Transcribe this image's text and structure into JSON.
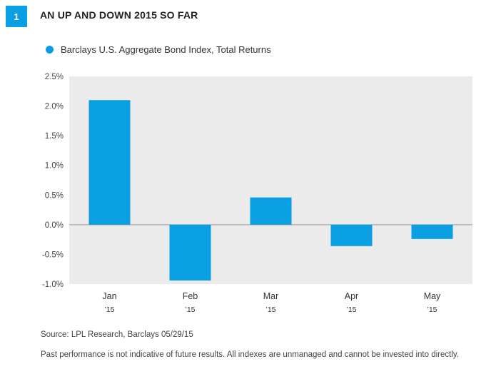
{
  "figure": {
    "number": "1",
    "title": "AN UP AND DOWN 2015 SO FAR"
  },
  "legend": {
    "label": "Barclays U.S. Aggregate Bond Index, Total Returns"
  },
  "colors": {
    "accent": "#0a9ee3",
    "plot_bg": "#ebebeb"
  },
  "chart_data": {
    "type": "bar",
    "categories": [
      "Jan",
      "Feb",
      "Mar",
      "Apr",
      "May"
    ],
    "category_sublabels": [
      "’15",
      "’15",
      "’15",
      "’15",
      "’15"
    ],
    "series": [
      {
        "name": "Barclays U.S. Aggregate Bond Index, Total Returns",
        "values": [
          2.1,
          -0.94,
          0.46,
          -0.36,
          -0.24
        ]
      }
    ],
    "ylim": [
      -1.0,
      2.5
    ],
    "yticks": [
      2.5,
      2.0,
      1.5,
      1.0,
      0.5,
      0.0,
      -0.5,
      -1.0
    ],
    "ytick_labels": [
      "2.5%",
      "2.0%",
      "1.5%",
      "1.0%",
      "0.5%",
      "0.0%",
      "-0.5%",
      "-1.0%"
    ],
    "grid": false,
    "legend_position": "top-left"
  },
  "footer": {
    "source": "Source: LPL Research, Barclays   05/29/15",
    "disclaimer": "Past performance is not indicative of future results. All indexes are unmanaged and cannot be invested into directly."
  }
}
